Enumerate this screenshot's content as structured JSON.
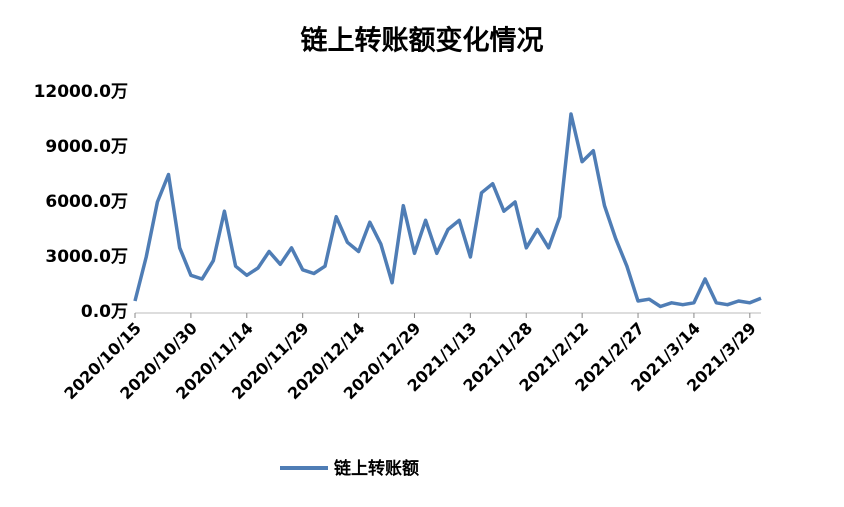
{
  "chart_data": {
    "type": "line",
    "title": "链上转账额变化情况",
    "categories": [
      "2020/10/15",
      null,
      null,
      null,
      null,
      "2020/10/30",
      null,
      null,
      null,
      null,
      "2020/11/14",
      null,
      null,
      null,
      null,
      "2020/11/29",
      null,
      null,
      null,
      null,
      "2020/12/14",
      null,
      null,
      null,
      null,
      "2020/12/29",
      null,
      null,
      null,
      null,
      "2021/1/13",
      null,
      null,
      null,
      null,
      "2021/1/28",
      null,
      null,
      null,
      null,
      "2021/2/12",
      null,
      null,
      null,
      null,
      "2021/2/27",
      null,
      null,
      null,
      null,
      "2021/3/14",
      null,
      null,
      null,
      null,
      "2021/3/29",
      null
    ],
    "series": [
      {
        "name": "链上转账额",
        "color": "#4f7db5",
        "values": [
          600,
          3000,
          6000,
          7500,
          3500,
          2000,
          1800,
          2800,
          5500,
          2500,
          2000,
          2400,
          3300,
          2600,
          3500,
          2300,
          2100,
          2500,
          5200,
          3800,
          3300,
          4900,
          3700,
          1600,
          5800,
          3200,
          5000,
          3200,
          4500,
          5000,
          3000,
          6500,
          7000,
          5500,
          6000,
          3500,
          4500,
          3500,
          5200,
          10800,
          8200,
          8800,
          5800,
          4000,
          2500,
          600,
          700,
          300,
          500,
          400,
          500,
          1800,
          500,
          400,
          600,
          500,
          750
        ]
      }
    ],
    "ylim": [
      0,
      12000
    ],
    "yticks": [
      {
        "value": 0,
        "label": "0.0万"
      },
      {
        "value": 3000,
        "label": "3000.0万"
      },
      {
        "value": 6000,
        "label": "6000.0万"
      },
      {
        "value": 9000,
        "label": "9000.0万"
      },
      {
        "value": 12000,
        "label": "12000.0万"
      }
    ],
    "legend": "bottom"
  }
}
